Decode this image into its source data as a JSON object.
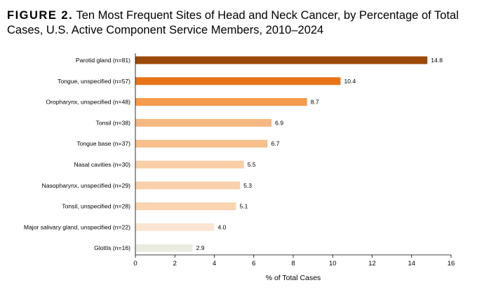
{
  "header": {
    "figure_label": "FIGURE 2.",
    "title": "Ten Most Frequent Sites of  Head and Neck Cancer, by Percentage of Total Cases, U.S. Active Component Service Members, 2010–2024"
  },
  "chart_data": {
    "type": "bar",
    "orientation": "horizontal",
    "categories": [
      "Parotid gland (n=81)",
      "Tongue, unspecified (n=57)",
      "Oropharynx, unspecified (n=48)",
      "Tonsil (n=38)",
      "Tongue base (n=37)",
      "Nasal cavities (n=30)",
      "Nasopharynx, unspecified (n=29)",
      "Tonsil, unspecified (n=28)",
      "Major salivary gland, unspecified (n=22)",
      "Glottis (n=16)"
    ],
    "values": [
      14.8,
      10.4,
      8.7,
      6.9,
      6.7,
      5.5,
      5.3,
      5.1,
      4.0,
      2.9
    ],
    "value_labels": [
      "14.8",
      "10.4",
      "8.7",
      "6.9",
      "6.7",
      "5.5",
      "5.3",
      "5.1",
      "4.0",
      "2.9"
    ],
    "colors": [
      "#9c4a0a",
      "#e8741a",
      "#f59a4a",
      "#f6b882",
      "#f6bf8c",
      "#f9cfa8",
      "#f9d0aa",
      "#fad4b0",
      "#fbe5d2",
      "#ecebe2"
    ],
    "xlabel": "% of Total Cases",
    "ylabel": "",
    "xlim": [
      0,
      16
    ],
    "xticks": [
      "0",
      "2",
      "4",
      "6",
      "8",
      "10",
      "12",
      "14",
      "16"
    ],
    "grid": false,
    "legend": "none"
  }
}
